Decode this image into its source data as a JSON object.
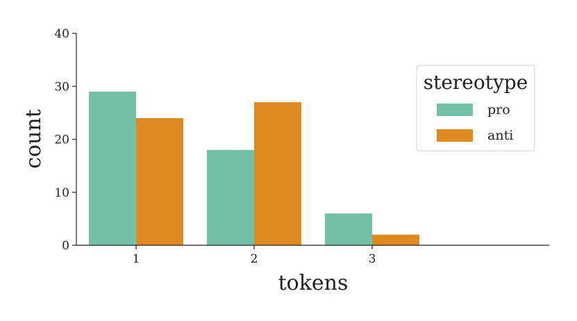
{
  "chart_data": {
    "type": "bar",
    "categories": [
      "1",
      "2",
      "3"
    ],
    "series": [
      {
        "name": "pro",
        "values": [
          29,
          18,
          6
        ],
        "color": "#74c1a7"
      },
      {
        "name": "anti",
        "values": [
          24,
          27,
          2
        ],
        "color": "#df8a21"
      }
    ],
    "xlabel": "tokens",
    "ylabel": "count",
    "ylim": [
      0,
      40
    ],
    "yticks": [
      "0",
      "10",
      "20",
      "30",
      "40"
    ],
    "legend": {
      "title": "stereotype",
      "position": "top-right"
    },
    "grid": false
  }
}
